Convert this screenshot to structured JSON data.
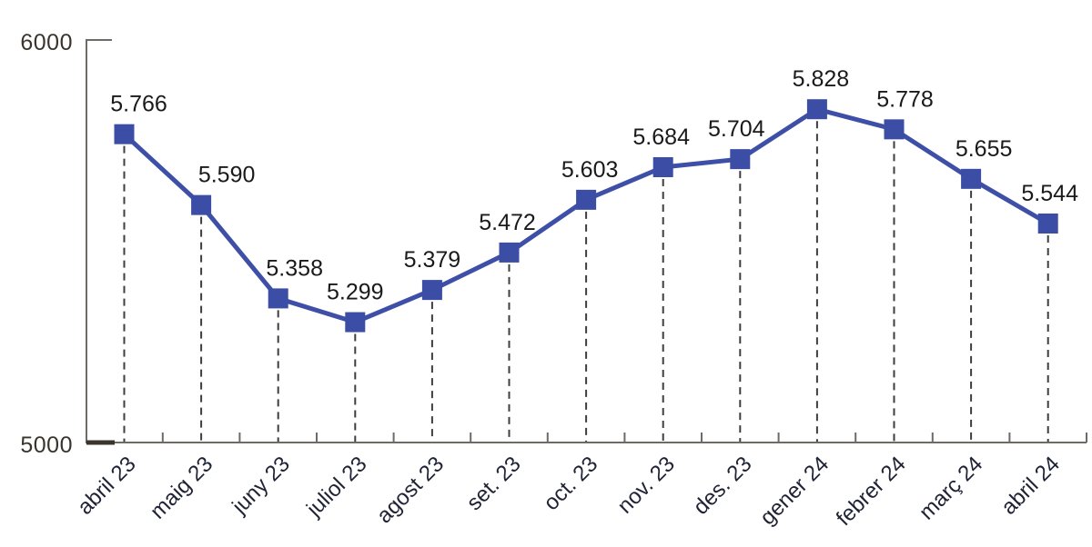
{
  "chart_data": {
    "type": "line",
    "title": "",
    "xlabel": "",
    "ylabel": "",
    "categories": [
      "abril 23",
      "maig 23",
      "juny 23",
      "juliol 23",
      "agost 23",
      "set. 23",
      "oct. 23",
      "nov. 23",
      "des. 23",
      "gener 24",
      "febrer 24",
      "març 24",
      "abril 24"
    ],
    "values": [
      5766,
      5590,
      5358,
      5299,
      5379,
      5472,
      5603,
      5684,
      5704,
      5828,
      5778,
      5655,
      5544
    ],
    "value_labels": [
      "5.766",
      "5.590",
      "5.358",
      "5.299",
      "5.379",
      "5.472",
      "5.603",
      "5.684",
      "5.704",
      "5.828",
      "5.778",
      "5.655",
      "5.544"
    ],
    "ylim": [
      5000,
      6000
    ],
    "ytick_labels": [
      "6000",
      "5000"
    ],
    "legend": "none",
    "grid": "none",
    "droplines": "dashed vertical line from each data point to x-axis",
    "marker": "square",
    "colors": {
      "line": "#3E4FA7",
      "marker": "#3B4DA4",
      "axis": "#6E6A66",
      "axis_strong_tick": "#3B342D",
      "dropline": "#3E3E3E",
      "value_label": "#1A1A1A",
      "y_tick_label": "#3B342D",
      "x_tick_label": "#1F2335"
    }
  }
}
